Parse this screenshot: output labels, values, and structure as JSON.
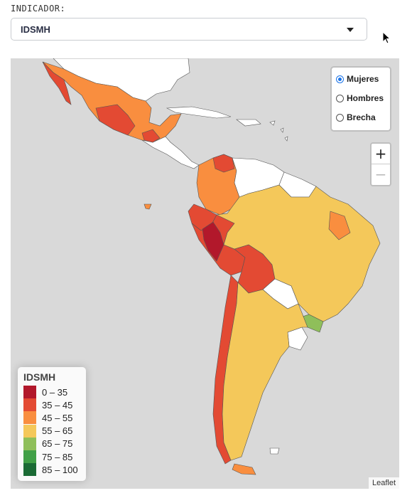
{
  "indicator": {
    "label": "INDICADOR:",
    "selected": "IDSMH"
  },
  "layers": [
    {
      "label": "Mujeres",
      "selected": true
    },
    {
      "label": "Hombres",
      "selected": false
    },
    {
      "label": "Brecha",
      "selected": false
    }
  ],
  "zoom": {
    "in": "+",
    "out": "−"
  },
  "legend": {
    "title": "IDSMH",
    "items": [
      {
        "range": "0 – 35",
        "color": "#b2182b"
      },
      {
        "range": "35 – 45",
        "color": "#e34a33"
      },
      {
        "range": "45 – 55",
        "color": "#f98e3f"
      },
      {
        "range": "55 – 65",
        "color": "#f4c85a"
      },
      {
        "range": "65 – 75",
        "color": "#8fbf5a"
      },
      {
        "range": "75 – 85",
        "color": "#41a047"
      },
      {
        "range": "85 – 100",
        "color": "#1b6b35"
      }
    ]
  },
  "attribution": "Leaflet",
  "colors": {
    "ocean": "#d9d9d9",
    "no_data": "#ffffff",
    "border": "#555555"
  }
}
